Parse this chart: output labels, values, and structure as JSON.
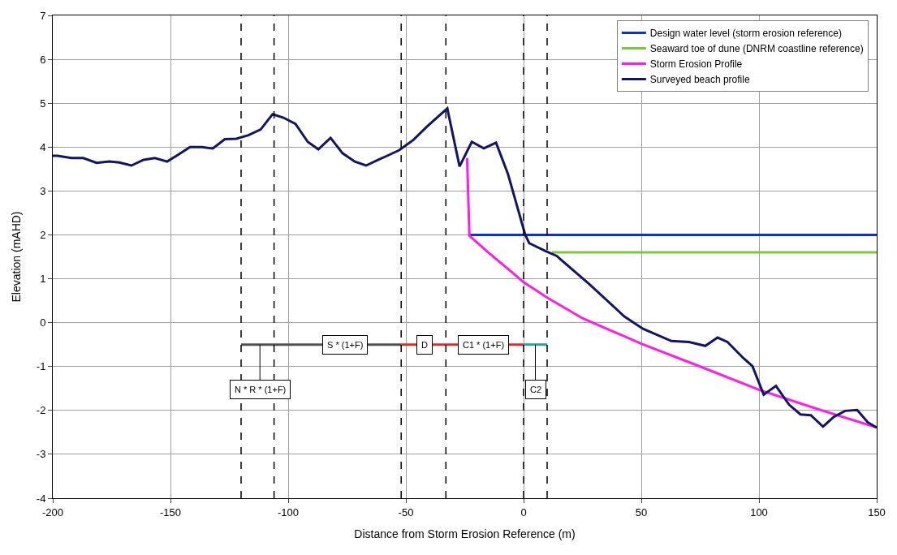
{
  "chart_data": {
    "type": "line",
    "xlabel": "Distance from Storm Erosion Reference (m)",
    "ylabel": "Elevation (mAHD)",
    "xlim": [
      -200,
      150
    ],
    "xticks": [
      -200,
      -150,
      -100,
      -50,
      0,
      50,
      100,
      150
    ],
    "ylim": [
      -4,
      7
    ],
    "yticks": [
      -4,
      -3,
      -2,
      -1,
      0,
      1,
      2,
      3,
      4,
      5,
      6,
      7
    ],
    "grid": true,
    "legend": "top right",
    "marker": "none",
    "line_style": "solid",
    "series": [
      {
        "name": "Design water level (storm erosion reference)",
        "color": "#0a2cf0",
        "x": [
          -23,
          150
        ],
        "values": [
          2,
          2
        ]
      },
      {
        "name": "Seaward toe of dune (DNRM coastline reference)",
        "color": "#7cc83c",
        "x": [
          12,
          150
        ],
        "values": [
          1.6,
          1.6
        ]
      },
      {
        "name": "Storm Erosion Profile",
        "color": "#ff1ee6",
        "x": [
          -24,
          -23,
          -15,
          -5,
          0,
          10,
          25,
          50,
          75,
          100,
          125,
          150
        ],
        "values": [
          3.75,
          1.98,
          1.6,
          1.15,
          0.92,
          0.57,
          0.1,
          -0.48,
          -1.0,
          -1.53,
          -1.97,
          -2.39
        ]
      },
      {
        "name": "Surveyed beach profile",
        "color": "#141464",
        "x": [
          -200,
          -198,
          -192,
          -187,
          -181.4,
          -176,
          -171.7,
          -166.6,
          -161.4,
          -156.6,
          -151.4,
          -146.9,
          -141.7,
          -136.6,
          -132,
          -126.9,
          -122,
          -116.9,
          -111.7,
          -106.6,
          -102,
          -96.9,
          -91.7,
          -87.2,
          -82,
          -76.9,
          -71.7,
          -66.9,
          -61.7,
          -57.2,
          -52.8,
          -46.9,
          -41,
          -32.4,
          -27.2,
          -22,
          -16.9,
          -11.7,
          -6.6,
          0.7,
          2.4,
          9.3,
          14.1,
          16.2,
          27.9,
          42.8,
          50.7,
          62.8,
          70.3,
          77.2,
          82.4,
          86.6,
          93.4,
          97.2,
          102,
          107.2,
          112.8,
          117.6,
          122,
          127.2,
          131.7,
          136.6,
          141.7,
          146.2,
          150
        ],
        "values": [
          3.8,
          3.8,
          3.75,
          3.75,
          3.64,
          3.67,
          3.65,
          3.58,
          3.71,
          3.75,
          3.67,
          3.82,
          4.0,
          4.0,
          3.97,
          4.18,
          4.19,
          4.27,
          4.4,
          4.75,
          4.67,
          4.53,
          4.12,
          3.95,
          4.21,
          3.86,
          3.67,
          3.58,
          3.71,
          3.82,
          3.93,
          4.16,
          4.47,
          4.88,
          3.56,
          4.12,
          3.97,
          4.1,
          3.38,
          2.0,
          1.81,
          1.63,
          1.52,
          1.42,
          0.88,
          0.14,
          -0.14,
          -0.42,
          -0.44,
          -0.53,
          -0.34,
          -0.44,
          -0.81,
          -0.99,
          -1.64,
          -1.44,
          -1.87,
          -2.09,
          -2.11,
          -2.37,
          -2.15,
          -2.01,
          -1.99,
          -2.27,
          -2.39
        ]
      },
      {
        "color": "#505050",
        "x": [
          -120,
          -52
        ],
        "values": [
          -0.5,
          -0.5
        ]
      },
      {
        "color": "#d03030",
        "x": [
          -52,
          0
        ],
        "values": [
          -0.5,
          -0.5
        ]
      },
      {
        "color": "#30a0a0",
        "x": [
          0,
          10
        ],
        "values": [
          -0.5,
          -0.5
        ]
      }
    ],
    "ref_lines": [
      {
        "axis": "x",
        "value": -120,
        "color": "#000000",
        "line_style": "dashed"
      },
      {
        "axis": "x",
        "value": -106,
        "color": "#000000",
        "line_style": "dashed"
      },
      {
        "axis": "x",
        "value": -52,
        "color": "#000000",
        "line_style": "dashed"
      },
      {
        "axis": "x",
        "value": -33,
        "color": "#000000",
        "line_style": "dashed"
      },
      {
        "axis": "x",
        "value": 0,
        "color": "#000000",
        "line_style": "dashed"
      },
      {
        "axis": "x",
        "value": 10,
        "color": "#000000",
        "line_style": "dashed"
      }
    ],
    "annotations": [
      {
        "text": "S * (1+F)",
        "x": -76,
        "y": -0.5
      },
      {
        "text": "D",
        "x": -42,
        "y": -0.5
      },
      {
        "text": "C1 * (1+F)",
        "x": -17,
        "y": -0.5
      },
      {
        "text": "N * R * (1+F)",
        "x": -112,
        "y": -0.5
      },
      {
        "text": "C2",
        "x": 5,
        "y": -0.5
      }
    ]
  }
}
